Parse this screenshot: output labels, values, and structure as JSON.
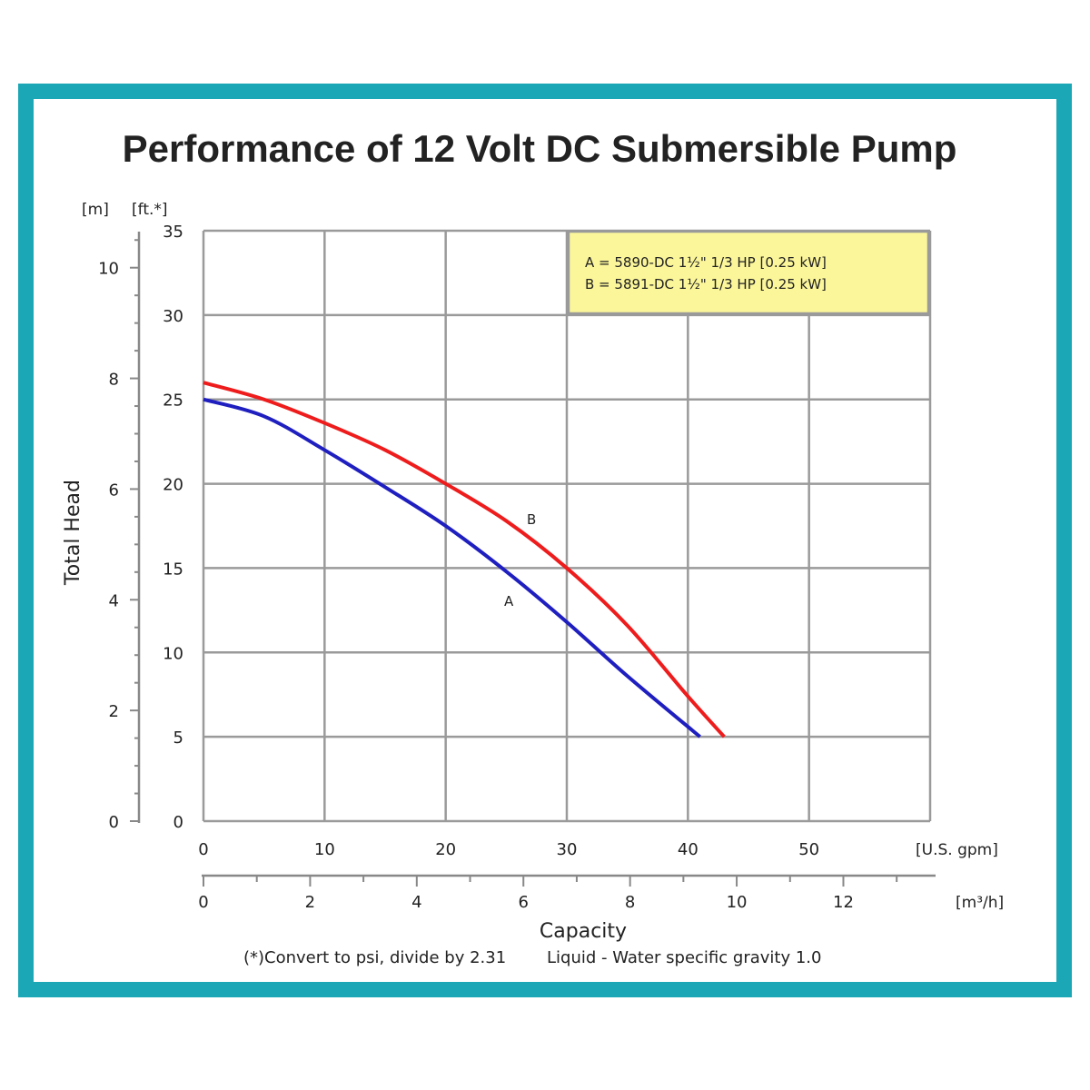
{
  "colors": {
    "frame": "#1ba7b5",
    "curve_a": "#1f1fc0",
    "curve_b": "#ee1c1c",
    "legend_bg": "#fbf69a"
  },
  "chart_data": {
    "type": "line",
    "title": "Performance of 12 Volt DC Submersible Pump",
    "xlabel": "Capacity",
    "ylabel": "Total Head",
    "x_unit": "[U.S. gpm]",
    "x2_unit": "[m³/h]",
    "y_unit_m": "[m]",
    "y_unit_ft": "[ft.*]",
    "xlim": [
      0,
      60
    ],
    "ylim": [
      0,
      35
    ],
    "x_ticks": [
      "0",
      "10",
      "20",
      "30",
      "40",
      "50"
    ],
    "x2_ticks": [
      "0",
      "2",
      "4",
      "6",
      "8",
      "10",
      "12"
    ],
    "y_ticks_ft": [
      "0",
      "5",
      "10",
      "15",
      "20",
      "25",
      "30",
      "35"
    ],
    "y_ticks_m": [
      "0",
      "2",
      "4",
      "6",
      "8",
      "10"
    ],
    "grid": true,
    "legend_position": "top-right",
    "legend": [
      "A = 5890-DC 1½\" 1/3 HP [0.25 kW]",
      "B = 5891-DC 1½\" 1/3 HP [0.25 kW]"
    ],
    "series": [
      {
        "name": "A",
        "x": [
          0,
          5,
          10,
          15,
          20,
          25,
          30,
          35,
          41
        ],
        "y": [
          25,
          24,
          22,
          19.8,
          17.5,
          14.8,
          11.8,
          8.6,
          5
        ]
      },
      {
        "name": "B",
        "x": [
          0,
          5,
          10,
          15,
          20,
          25,
          30,
          35,
          40,
          43
        ],
        "y": [
          26,
          25,
          23.6,
          22,
          20,
          17.8,
          15,
          11.6,
          7.4,
          5
        ]
      }
    ],
    "note_left": "(*)Convert to psi, divide by 2.31",
    "note_right": "Liquid - Water specific gravity 1.0"
  }
}
